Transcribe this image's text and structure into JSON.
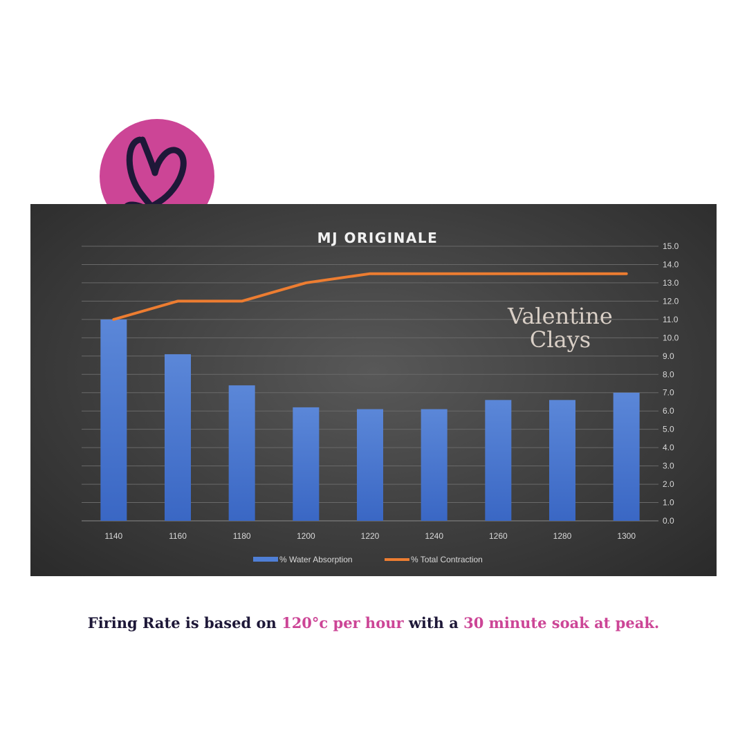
{
  "chart_data": {
    "type": "bar+line",
    "title": "MJ ORIGINALE",
    "categories": [
      "1140",
      "1160",
      "1180",
      "1200",
      "1220",
      "1240",
      "1260",
      "1280",
      "1300"
    ],
    "series": [
      {
        "name": "% Water Absorption",
        "type": "bar",
        "color": "#4f7fd6",
        "values": [
          11.0,
          9.1,
          7.4,
          6.2,
          6.1,
          6.1,
          6.6,
          6.6,
          7.0
        ]
      },
      {
        "name": "% Total Contraction",
        "type": "line",
        "color": "#ed7d31",
        "values": [
          11.0,
          12.0,
          12.0,
          13.0,
          13.5,
          13.5,
          13.5,
          13.5,
          13.5
        ]
      }
    ],
    "ylim": [
      0,
      15
    ],
    "yticks": [
      "0.0",
      "1.0",
      "2.0",
      "3.0",
      "4.0",
      "5.0",
      "6.0",
      "7.0",
      "8.0",
      "9.0",
      "10.0",
      "11.0",
      "12.0",
      "13.0",
      "14.0",
      "15.0"
    ],
    "y_axis_side": "right",
    "grid": true,
    "legend": "bottom"
  },
  "watermark": {
    "line1": "Valentine",
    "line2": "Clays"
  },
  "caption": {
    "part1": "Firing Rate is based on ",
    "part2": "120°c per hour",
    "part3": " with a ",
    "part4": "30 minute soak at peak."
  },
  "colors": {
    "brand_pink": "#cc4596",
    "navy": "#1e1838"
  }
}
